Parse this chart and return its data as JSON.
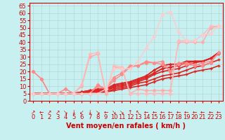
{
  "background_color": "#c8f0f0",
  "grid_color": "#b0d8d8",
  "xlabel": "Vent moyen/en rafales ( km/h )",
  "ylabel_ticks": [
    0,
    5,
    10,
    15,
    20,
    25,
    30,
    35,
    40,
    45,
    50,
    55,
    60,
    65
  ],
  "xlim": [
    -0.5,
    23.5
  ],
  "ylim": [
    0,
    67
  ],
  "xlabel_color": "#cc0000",
  "xlabel_fontsize": 7,
  "tick_color": "#cc0000",
  "tick_fontsize": 6,
  "series": [
    {
      "x": [
        0,
        1,
        2,
        3,
        4,
        5,
        6,
        7,
        8,
        9,
        10,
        11,
        12,
        13,
        14,
        15,
        16,
        17,
        18,
        19,
        20,
        21,
        22,
        23
      ],
      "y": [
        5,
        5,
        5,
        5,
        5,
        5,
        5,
        6,
        6,
        6,
        7,
        8,
        9,
        10,
        11,
        13,
        15,
        16,
        17,
        18,
        20,
        21,
        22,
        24
      ],
      "color": "#dd2222",
      "lw": 1.2,
      "marker": "+",
      "ms": 3,
      "mew": 1.0
    },
    {
      "x": [
        0,
        1,
        2,
        3,
        4,
        5,
        6,
        7,
        8,
        9,
        10,
        11,
        12,
        13,
        14,
        15,
        16,
        17,
        18,
        19,
        20,
        21,
        22,
        23
      ],
      "y": [
        5,
        5,
        5,
        5,
        5,
        5,
        5,
        6,
        6,
        6,
        8,
        9,
        10,
        12,
        13,
        15,
        17,
        18,
        19,
        21,
        23,
        24,
        26,
        28
      ],
      "color": "#dd2222",
      "lw": 1.2,
      "marker": "+",
      "ms": 3,
      "mew": 1.0
    },
    {
      "x": [
        0,
        1,
        2,
        3,
        4,
        5,
        6,
        7,
        8,
        9,
        10,
        11,
        12,
        13,
        14,
        15,
        16,
        17,
        18,
        19,
        20,
        21,
        22,
        23
      ],
      "y": [
        5,
        5,
        5,
        5,
        5,
        5,
        5,
        6,
        7,
        7,
        9,
        10,
        11,
        13,
        15,
        18,
        20,
        21,
        22,
        24,
        26,
        27,
        29,
        32
      ],
      "color": "#dd2222",
      "lw": 1.2,
      "marker": "+",
      "ms": 3,
      "mew": 1.0
    },
    {
      "x": [
        0,
        1,
        2,
        3,
        4,
        5,
        6,
        7,
        8,
        9,
        10,
        11,
        12,
        13,
        14,
        15,
        16,
        17,
        18,
        19,
        20,
        21,
        22,
        23
      ],
      "y": [
        5,
        5,
        5,
        5,
        5,
        5,
        6,
        7,
        7,
        7,
        10,
        11,
        12,
        14,
        16,
        19,
        22,
        23,
        24,
        26,
        27,
        27,
        29,
        33
      ],
      "color": "#dd2222",
      "lw": 1.4,
      "marker": "D",
      "ms": 2,
      "mew": 0.5
    },
    {
      "x": [
        0,
        1,
        2,
        3,
        4,
        5,
        6,
        7,
        8,
        9,
        10,
        11,
        12,
        13,
        14,
        15,
        16,
        17,
        18,
        19,
        20,
        21,
        22,
        23
      ],
      "y": [
        5,
        5,
        5,
        5,
        5,
        5,
        6,
        7,
        8,
        8,
        11,
        12,
        13,
        15,
        17,
        21,
        24,
        25,
        25,
        27,
        27,
        27,
        29,
        33
      ],
      "color": "#dd2222",
      "lw": 1.4,
      "marker": "D",
      "ms": 2,
      "mew": 0.5
    },
    {
      "x": [
        0,
        1,
        2,
        3,
        4,
        5,
        6,
        7,
        8,
        9,
        10,
        11,
        12,
        13,
        14,
        15,
        16,
        17,
        18,
        19,
        20,
        21,
        22,
        23
      ],
      "y": [
        20,
        15,
        5,
        5,
        8,
        5,
        5,
        5,
        10,
        8,
        14,
        18,
        23,
        24,
        26,
        26,
        27,
        20,
        26,
        26,
        25,
        24,
        26,
        33
      ],
      "color": "#ff8888",
      "lw": 1.0,
      "marker": "D",
      "ms": 2.5,
      "mew": 0.5
    },
    {
      "x": [
        0,
        1,
        2,
        3,
        4,
        5,
        6,
        7,
        8,
        9,
        10,
        11,
        12,
        13,
        14,
        15,
        16,
        17,
        18,
        19,
        20,
        21,
        22,
        23
      ],
      "y": [
        20,
        15,
        5,
        5,
        8,
        5,
        5,
        5,
        11,
        8,
        16,
        19,
        24,
        24,
        27,
        26,
        25,
        20,
        25,
        25,
        24,
        26,
        27,
        33
      ],
      "color": "#ff8888",
      "lw": 1.0,
      "marker": "D",
      "ms": 2.5,
      "mew": 0.5
    },
    {
      "x": [
        0,
        1,
        2,
        3,
        4,
        5,
        6,
        7,
        8,
        9,
        10,
        11,
        12,
        13,
        14,
        15,
        16,
        17,
        18,
        19,
        20,
        21,
        22,
        23
      ],
      "y": [
        5,
        5,
        5,
        5,
        5,
        5,
        10,
        30,
        32,
        5,
        23,
        22,
        5,
        8,
        7,
        7,
        7,
        7,
        40,
        40,
        40,
        40,
        50,
        51
      ],
      "color": "#ffaaaa",
      "lw": 1.0,
      "marker": "D",
      "ms": 2.5,
      "mew": 0.5
    },
    {
      "x": [
        0,
        1,
        2,
        3,
        4,
        5,
        6,
        7,
        8,
        9,
        10,
        11,
        12,
        13,
        14,
        15,
        16,
        17,
        18,
        19,
        20,
        21,
        22,
        23
      ],
      "y": [
        5,
        5,
        5,
        5,
        5,
        5,
        11,
        32,
        33,
        6,
        24,
        23,
        5,
        5,
        5,
        5,
        5,
        5,
        41,
        41,
        41,
        45,
        51,
        51
      ],
      "color": "#ffbbbb",
      "lw": 1.0,
      "marker": "D",
      "ms": 2.5,
      "mew": 0.5
    },
    {
      "x": [
        0,
        1,
        2,
        3,
        4,
        5,
        6,
        7,
        8,
        9,
        10,
        11,
        12,
        13,
        14,
        15,
        16,
        17,
        18,
        19,
        20,
        21,
        22,
        23
      ],
      "y": [
        5,
        5,
        5,
        5,
        5,
        5,
        5,
        5,
        5,
        8,
        22,
        22,
        22,
        27,
        36,
        44,
        59,
        61,
        47,
        41,
        41,
        45,
        46,
        51
      ],
      "color": "#ffcccc",
      "lw": 1.0,
      "marker": "D",
      "ms": 2.5,
      "mew": 0.5
    }
  ],
  "arrow_symbols": [
    "↗",
    "←",
    "↗",
    "↗",
    "↘",
    "↓",
    "↙",
    "↓",
    "↘",
    "←",
    "↘",
    "↘",
    "↑",
    "↖",
    "←",
    "←",
    "←",
    "←",
    "←",
    "←",
    "←",
    "←",
    "←",
    "←"
  ]
}
